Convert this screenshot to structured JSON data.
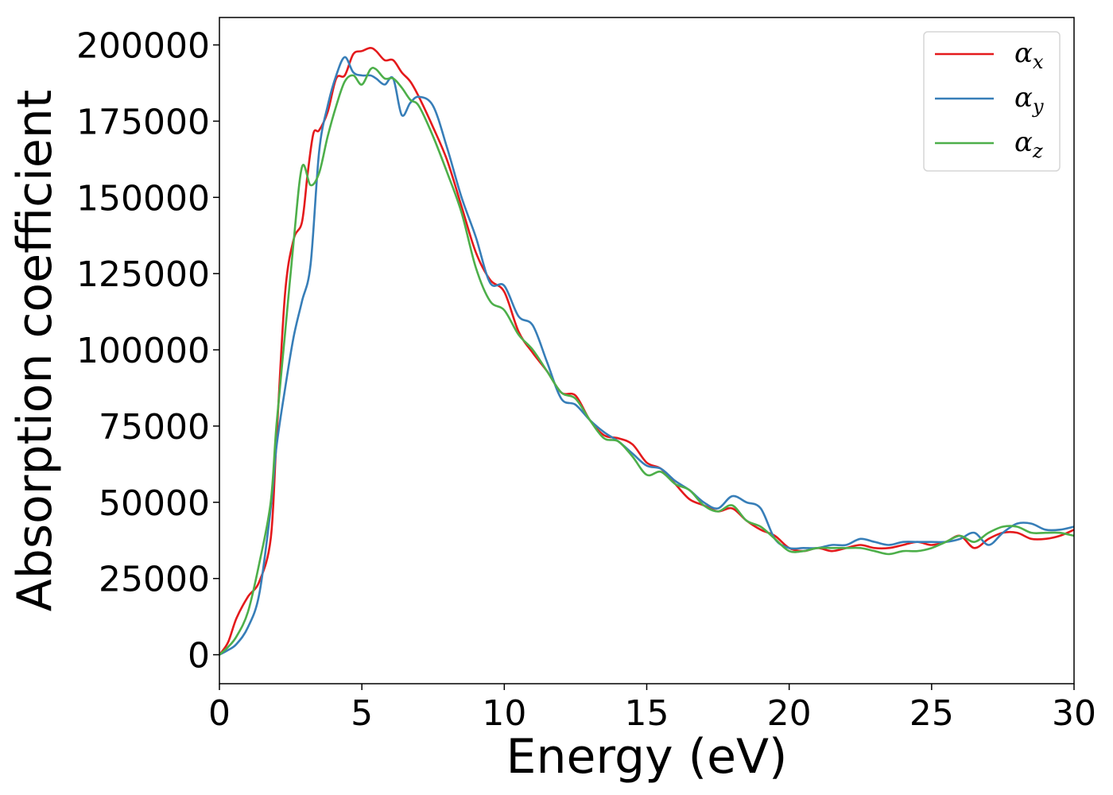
{
  "chart_data": {
    "type": "line",
    "title": "",
    "xlabel": "Energy (eV)",
    "ylabel": "Absorption coefficient",
    "xlim": [
      0,
      30
    ],
    "ylim": [
      -9500,
      209000
    ],
    "xticks": [
      0,
      5,
      10,
      15,
      20,
      25,
      30
    ],
    "xtick_labels": [
      "0",
      "5",
      "10",
      "15",
      "20",
      "25",
      "30"
    ],
    "yticks": [
      0,
      25000,
      50000,
      75000,
      100000,
      125000,
      150000,
      175000,
      200000
    ],
    "ytick_labels": [
      "0",
      "25000",
      "50000",
      "75000",
      "100000",
      "125000",
      "150000",
      "175000",
      "200000"
    ],
    "grid": false,
    "legend": {
      "placement": "top-right",
      "frame": true
    },
    "series": [
      {
        "name": "α_x",
        "legend_base": "α",
        "legend_sub": "x",
        "color": "#e41a1c",
        "x": [
          0,
          0.3,
          0.6,
          1.0,
          1.4,
          1.8,
          2.0,
          2.3,
          2.6,
          2.9,
          3.1,
          3.3,
          3.5,
          3.8,
          4.1,
          4.4,
          4.7,
          5.0,
          5.3,
          5.5,
          5.8,
          6.1,
          6.4,
          6.7,
          7.0,
          7.5,
          8.0,
          8.5,
          9.0,
          9.5,
          10.0,
          10.5,
          11.0,
          11.5,
          12.0,
          12.5,
          13.0,
          13.5,
          14.0,
          14.5,
          15.0,
          15.5,
          16.0,
          16.5,
          17.0,
          17.5,
          18.0,
          18.5,
          19.0,
          19.5,
          20.0,
          20.5,
          21.0,
          21.5,
          22.0,
          22.5,
          23.0,
          23.5,
          24.0,
          24.5,
          25.0,
          25.5,
          26.0,
          26.5,
          27.0,
          27.5,
          28.0,
          28.5,
          29.0,
          29.5,
          30.0
        ],
        "y": [
          0,
          4000,
          12000,
          19000,
          24000,
          38000,
          70000,
          118000,
          136000,
          142000,
          158000,
          171000,
          172000,
          178000,
          189000,
          190000,
          197000,
          198000,
          199000,
          198000,
          195000,
          195000,
          191000,
          188000,
          183000,
          173000,
          162000,
          147000,
          132000,
          123000,
          119000,
          106000,
          99000,
          93000,
          86000,
          85000,
          77000,
          72000,
          71000,
          69000,
          63000,
          61000,
          56000,
          51000,
          49000,
          47000,
          48000,
          44000,
          41000,
          39000,
          35000,
          34000,
          35000,
          34000,
          35000,
          36000,
          35000,
          35000,
          36000,
          37000,
          36000,
          37000,
          39000,
          35000,
          38000,
          40000,
          40000,
          38000,
          38000,
          39000,
          41000
        ]
      },
      {
        "name": "α_y",
        "legend_base": "α",
        "legend_sub": "y",
        "color": "#377eb8",
        "x": [
          0,
          0.3,
          0.6,
          1.0,
          1.4,
          1.8,
          2.0,
          2.3,
          2.6,
          2.9,
          3.2,
          3.5,
          3.8,
          4.1,
          4.4,
          4.7,
          5.0,
          5.3,
          5.5,
          5.8,
          6.1,
          6.4,
          6.7,
          7.0,
          7.5,
          8.0,
          8.5,
          9.0,
          9.5,
          10.0,
          10.5,
          11.0,
          11.5,
          12.0,
          12.5,
          13.0,
          13.5,
          14.0,
          14.5,
          15.0,
          15.5,
          16.0,
          16.5,
          17.0,
          17.5,
          18.0,
          18.5,
          19.0,
          19.5,
          20.0,
          20.5,
          21.0,
          21.5,
          22.0,
          22.5,
          23.0,
          23.5,
          24.0,
          24.5,
          25.0,
          25.5,
          26.0,
          26.5,
          27.0,
          27.5,
          28.0,
          28.5,
          29.0,
          29.5,
          30.0
        ],
        "y": [
          0,
          1500,
          3500,
          9000,
          20000,
          48000,
          68000,
          87000,
          104000,
          116000,
          128000,
          165000,
          180000,
          190000,
          196000,
          191000,
          190000,
          190000,
          189000,
          187000,
          189000,
          177000,
          181000,
          183000,
          180000,
          166000,
          150000,
          137000,
          122000,
          121000,
          111000,
          108000,
          96000,
          84000,
          82000,
          77000,
          73000,
          70000,
          66000,
          62000,
          61000,
          57000,
          54000,
          50000,
          48000,
          52000,
          50000,
          48000,
          38000,
          35000,
          35000,
          35000,
          36000,
          36000,
          38000,
          37000,
          36000,
          37000,
          37000,
          37000,
          37000,
          38000,
          40000,
          36000,
          40000,
          43000,
          43000,
          41000,
          41000,
          42000
        ]
      },
      {
        "name": "α_z",
        "legend_base": "α",
        "legend_sub": "z",
        "color": "#4daf4a",
        "x": [
          0,
          0.3,
          0.6,
          1.0,
          1.4,
          1.8,
          2.0,
          2.3,
          2.6,
          2.9,
          3.2,
          3.5,
          3.8,
          4.1,
          4.4,
          4.7,
          5.0,
          5.3,
          5.5,
          5.8,
          6.1,
          6.4,
          6.7,
          7.0,
          7.5,
          8.0,
          8.5,
          9.0,
          9.5,
          10.0,
          10.5,
          11.0,
          11.5,
          12.0,
          12.5,
          13.0,
          13.5,
          14.0,
          14.5,
          15.0,
          15.5,
          16.0,
          16.5,
          17.0,
          17.5,
          18.0,
          18.5,
          19.0,
          19.5,
          20.0,
          20.5,
          21.0,
          21.5,
          22.0,
          22.5,
          23.0,
          23.5,
          24.0,
          24.5,
          25.0,
          25.5,
          26.0,
          26.5,
          27.0,
          27.5,
          28.0,
          28.5,
          29.0,
          29.5,
          30.0
        ],
        "y": [
          0,
          2500,
          6000,
          14000,
          30000,
          50000,
          75000,
          105000,
          135000,
          160000,
          154000,
          158000,
          170000,
          180000,
          188000,
          190000,
          187000,
          192000,
          192000,
          189000,
          189000,
          186000,
          182000,
          180000,
          170000,
          158000,
          145000,
          127000,
          116000,
          113000,
          105000,
          100000,
          93000,
          86000,
          84000,
          77000,
          71000,
          70000,
          65000,
          59000,
          60000,
          56000,
          54000,
          49000,
          47000,
          49000,
          44000,
          42000,
          38000,
          34000,
          34000,
          35000,
          35000,
          35000,
          35000,
          34000,
          33000,
          34000,
          34000,
          35000,
          37000,
          39000,
          37000,
          40000,
          42000,
          42000,
          40000,
          40000,
          40000,
          39000
        ]
      }
    ]
  }
}
